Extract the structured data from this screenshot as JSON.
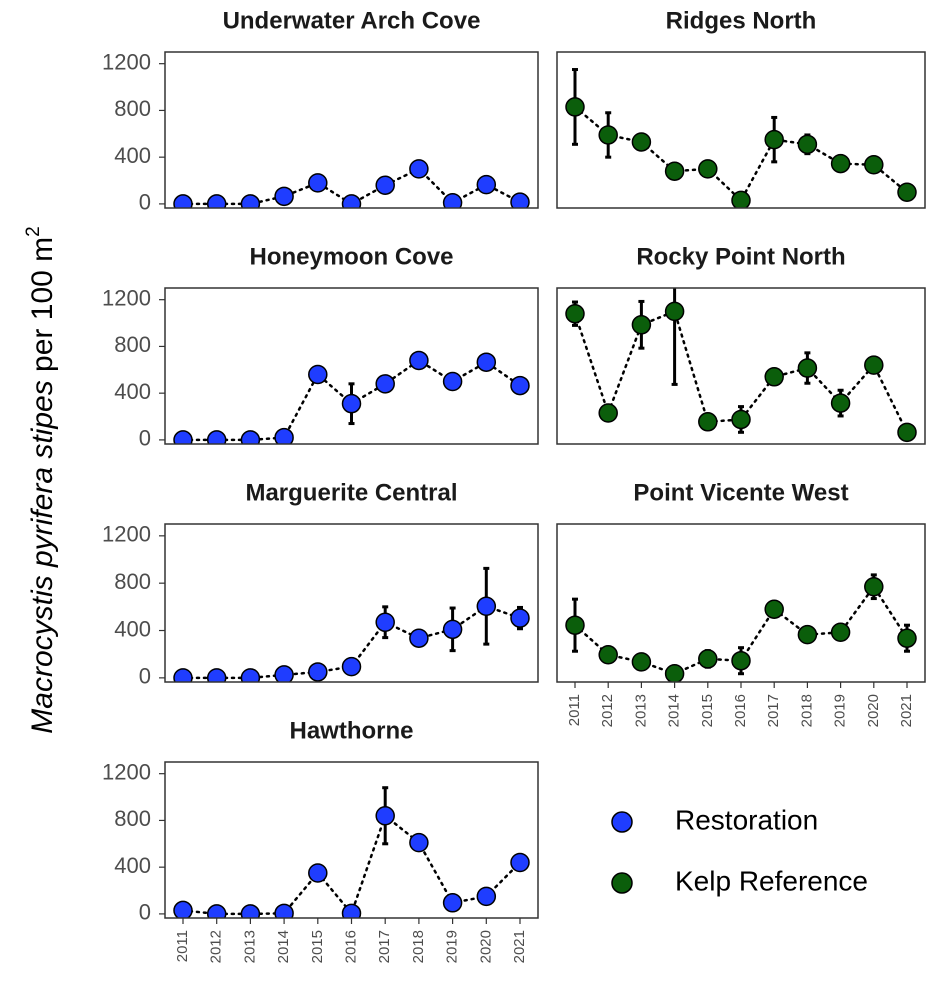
{
  "y_label": {
    "italic": "Macrocystis pyrifera stipes",
    "text": "per 100 m",
    "superscript": "2"
  },
  "chart_data": [
    {
      "type": "line",
      "title": "Underwater Arch Cove",
      "categories": [
        "2011",
        "2012",
        "2013",
        "2014",
        "2015",
        "2016",
        "2017",
        "2018",
        "2019",
        "2020",
        "2021"
      ],
      "series": [
        {
          "name": "Restoration",
          "color": "#1f3dff",
          "values": [
            0,
            0,
            0,
            65,
            180,
            0,
            160,
            300,
            10,
            165,
            15
          ],
          "errors": [
            null,
            null,
            null,
            null,
            null,
            null,
            null,
            null,
            null,
            null,
            null
          ]
        }
      ],
      "ylim": [
        -35,
        1300
      ],
      "yticks": [
        0,
        400,
        800,
        1200
      ]
    },
    {
      "type": "line",
      "title": "Ridges North",
      "categories": [
        "2011",
        "2012",
        "2013",
        "2014",
        "2015",
        "2016",
        "2017",
        "2018",
        "2019",
        "2020",
        "2021"
      ],
      "series": [
        {
          "name": "Kelp Reference",
          "color": "#0b5e0b",
          "values": [
            830,
            590,
            530,
            280,
            300,
            30,
            550,
            510,
            345,
            335,
            100
          ],
          "errors": [
            320,
            190,
            null,
            null,
            null,
            null,
            190,
            80,
            null,
            null,
            null
          ]
        }
      ],
      "ylim": [
        -35,
        1300
      ]
    },
    {
      "type": "line",
      "title": "Honeymoon Cove",
      "categories": [
        "2011",
        "2012",
        "2013",
        "2014",
        "2015",
        "2016",
        "2017",
        "2018",
        "2019",
        "2020",
        "2021"
      ],
      "series": [
        {
          "name": "Restoration",
          "color": "#1f3dff",
          "values": [
            0,
            0,
            0,
            20,
            560,
            310,
            480,
            680,
            500,
            665,
            465
          ],
          "errors": [
            null,
            null,
            null,
            null,
            null,
            170,
            50,
            null,
            null,
            null,
            null
          ]
        }
      ],
      "ylim": [
        -35,
        1300
      ],
      "yticks": [
        0,
        400,
        800,
        1200
      ]
    },
    {
      "type": "line",
      "title": "Rocky Point North",
      "categories": [
        "2011",
        "2012",
        "2013",
        "2014",
        "2015",
        "2016",
        "2017",
        "2018",
        "2019",
        "2020",
        "2021"
      ],
      "series": [
        {
          "name": "Kelp Reference",
          "color": "#0b5e0b",
          "values": [
            1080,
            230,
            985,
            1100,
            155,
            175,
            540,
            615,
            315,
            640,
            65
          ],
          "errors": [
            100,
            null,
            200,
            625,
            null,
            110,
            null,
            130,
            110,
            null,
            null
          ]
        }
      ],
      "ylim": [
        -35,
        1300
      ]
    },
    {
      "type": "line",
      "title": "Marguerite Central",
      "categories": [
        "2011",
        "2012",
        "2013",
        "2014",
        "2015",
        "2016",
        "2017",
        "2018",
        "2019",
        "2020",
        "2021"
      ],
      "series": [
        {
          "name": "Restoration",
          "color": "#1f3dff",
          "values": [
            0,
            0,
            0,
            25,
            50,
            95,
            470,
            335,
            410,
            605,
            505
          ],
          "errors": [
            null,
            null,
            null,
            null,
            null,
            null,
            130,
            null,
            180,
            320,
            90
          ]
        }
      ],
      "ylim": [
        -35,
        1300
      ],
      "yticks": [
        0,
        400,
        800,
        1200
      ]
    },
    {
      "type": "line",
      "title": "Point Vicente West",
      "categories": [
        "2011",
        "2012",
        "2013",
        "2014",
        "2015",
        "2016",
        "2017",
        "2018",
        "2019",
        "2020",
        "2021"
      ],
      "series": [
        {
          "name": "Kelp Reference",
          "color": "#0b5e0b",
          "values": [
            445,
            195,
            135,
            35,
            160,
            145,
            580,
            365,
            385,
            770,
            335
          ],
          "errors": [
            220,
            null,
            null,
            null,
            70,
            110,
            null,
            null,
            null,
            100,
            110
          ]
        }
      ],
      "ylim": [
        -35,
        1300
      ]
    },
    {
      "type": "line",
      "title": "Hawthorne",
      "categories": [
        "2011",
        "2012",
        "2013",
        "2014",
        "2015",
        "2016",
        "2017",
        "2018",
        "2019",
        "2020",
        "2021"
      ],
      "series": [
        {
          "name": "Restoration",
          "color": "#1f3dff",
          "values": [
            30,
            0,
            0,
            5,
            350,
            5,
            840,
            610,
            95,
            150,
            440
          ],
          "errors": [
            null,
            null,
            null,
            null,
            null,
            null,
            240,
            null,
            null,
            null,
            null
          ]
        }
      ],
      "ylim": [
        -35,
        1300
      ],
      "yticks": [
        0,
        400,
        800,
        1200
      ]
    }
  ]
}
